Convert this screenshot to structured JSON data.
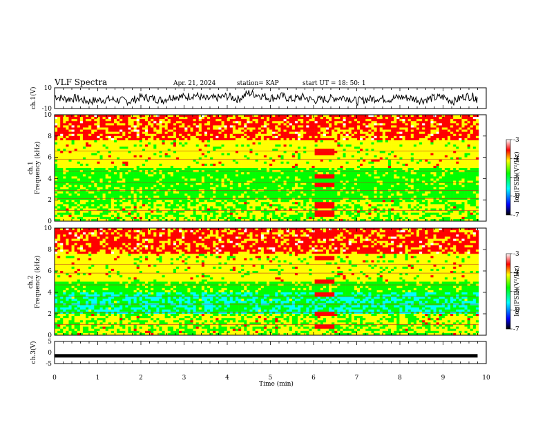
{
  "header": {
    "title": "VLF Spectra",
    "date": "Apr. 21, 2024",
    "station": "station= KAP",
    "start": "start  UT  =   18: 50: 1"
  },
  "chart_data": [
    {
      "type": "line",
      "panel": "ch1-waveform",
      "ylabel": "ch.1(V)",
      "ylim": [
        -10,
        10
      ],
      "yticks": [
        "10",
        "-10"
      ],
      "xlim": [
        0,
        10
      ],
      "x": [
        0,
        0.25,
        0.5,
        0.75,
        1,
        1.25,
        1.5,
        1.75,
        2,
        2.25,
        2.5,
        2.75,
        3,
        3.25,
        3.5,
        3.75,
        4,
        4.25,
        4.5,
        4.75,
        5,
        5.25,
        5.5,
        5.75,
        6,
        6.25,
        6.5,
        6.75,
        7,
        7.25,
        7.5,
        7.75,
        8,
        8.25,
        8.5,
        8.75,
        9,
        9.25,
        9.5,
        9.75,
        9.8
      ],
      "values": [
        2,
        -1,
        0,
        -3,
        -2,
        -1,
        -2,
        -3,
        1,
        0,
        -2,
        2,
        1,
        3,
        -1,
        0,
        2,
        -1,
        5,
        3,
        0,
        2,
        -1,
        1,
        -2,
        -1,
        0,
        1,
        -3,
        -1,
        0,
        -1,
        1,
        0,
        -2,
        0,
        1,
        -3,
        2,
        1,
        -2
      ]
    },
    {
      "type": "heatmap",
      "panel": "ch1-spectrogram",
      "ylabel": "ch.1\nFrequency (kHz)",
      "ylim": [
        0,
        10
      ],
      "yticks": [
        "0",
        "2",
        "4",
        "6",
        "8",
        "10"
      ],
      "xlim": [
        0,
        10
      ],
      "colorbar": {
        "label": "log(PSD)(V²/Hz)",
        "ticks": [
          "-3",
          "-4",
          "-5",
          "-6",
          "-7"
        ],
        "range": [
          -7,
          -3
        ]
      }
    },
    {
      "type": "heatmap",
      "panel": "ch2-spectrogram",
      "ylabel": "ch.2\nFrequency (kHz)",
      "ylim": [
        0,
        10
      ],
      "yticks": [
        "0",
        "2",
        "4",
        "6",
        "8",
        "10"
      ],
      "xlim": [
        0,
        10
      ],
      "colorbar": {
        "label": "log(PSD)(V²/Hz)",
        "ticks": [
          "-3",
          "-4",
          "-5",
          "-6",
          "-7"
        ],
        "range": [
          -7,
          -3
        ]
      }
    },
    {
      "type": "line",
      "panel": "ch3-waveform",
      "ylabel": "ch.3(V)",
      "ylim": [
        -5,
        5
      ],
      "yticks": [
        "5",
        "0",
        "-5"
      ],
      "xlim": [
        0,
        10
      ],
      "x": [
        0,
        9.8
      ],
      "values": [
        -1.5,
        -1.5
      ]
    }
  ],
  "xaxis": {
    "label": "Time  (min)",
    "ticks": [
      "0",
      "1",
      "2",
      "3",
      "4",
      "5",
      "6",
      "7",
      "8",
      "9",
      "10"
    ]
  },
  "colors": {
    "colormap": [
      "#000000",
      "#0000ff",
      "#00ffff",
      "#00ff00",
      "#ffff00",
      "#ff0000",
      "#ffffff"
    ],
    "line": "#000000"
  }
}
